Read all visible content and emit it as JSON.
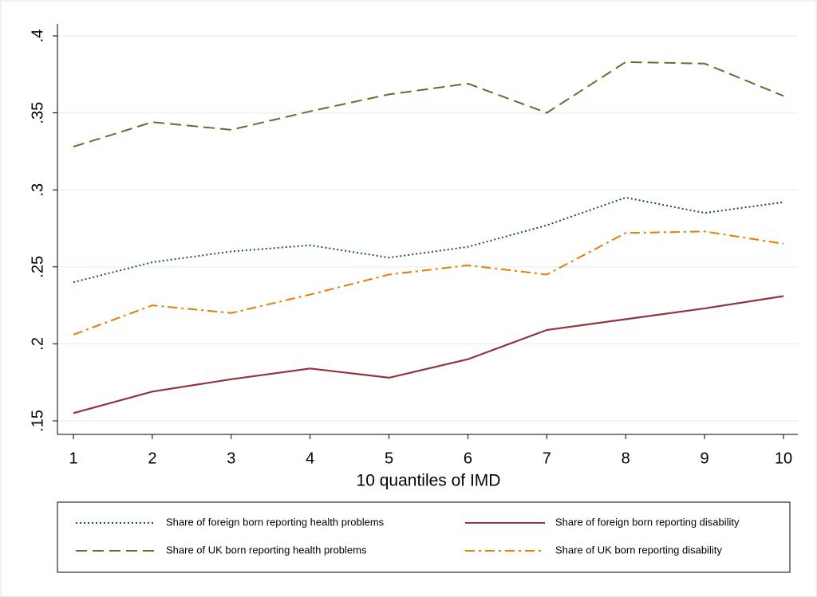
{
  "chart_data": {
    "type": "line",
    "x_label": "10 quantiles of IMD",
    "x": [
      1,
      2,
      3,
      4,
      5,
      6,
      7,
      8,
      9,
      10
    ],
    "xlim": [
      1,
      10
    ],
    "xticks": [
      1,
      2,
      3,
      4,
      5,
      6,
      7,
      8,
      9,
      10
    ],
    "ylim": [
      0.15,
      0.4
    ],
    "yticks": [
      {
        "value": 0.15,
        "label": ".15"
      },
      {
        "value": 0.2,
        "label": ".2"
      },
      {
        "value": 0.25,
        "label": ".25"
      },
      {
        "value": 0.3,
        "label": ".3"
      },
      {
        "value": 0.35,
        "label": ".35"
      },
      {
        "value": 0.4,
        "label": ".4"
      }
    ],
    "grid": true,
    "legend_position": "bottom",
    "series": [
      {
        "name": "Share of foreign born reporting health problems",
        "color": "#1a476f",
        "style": "dot",
        "values": [
          0.24,
          0.253,
          0.26,
          0.264,
          0.256,
          0.263,
          0.277,
          0.295,
          0.285,
          0.292
        ]
      },
      {
        "name": "Share of foreign born reporting disability",
        "color": "#90353b",
        "style": "solid",
        "values": [
          0.155,
          0.169,
          0.177,
          0.184,
          0.178,
          0.19,
          0.209,
          0.216,
          0.223,
          0.231
        ]
      },
      {
        "name": "Share of UK born reporting health problems",
        "color": "#55752f",
        "style": "dash",
        "values": [
          0.328,
          0.344,
          0.339,
          0.351,
          0.362,
          0.369,
          0.35,
          0.383,
          0.382,
          0.361
        ]
      },
      {
        "name": "Share of UK born reporting disability",
        "color": "#e37e00",
        "style": "dashdot",
        "values": [
          0.206,
          0.225,
          0.22,
          0.232,
          0.245,
          0.251,
          0.245,
          0.272,
          0.273,
          0.265
        ]
      }
    ]
  }
}
